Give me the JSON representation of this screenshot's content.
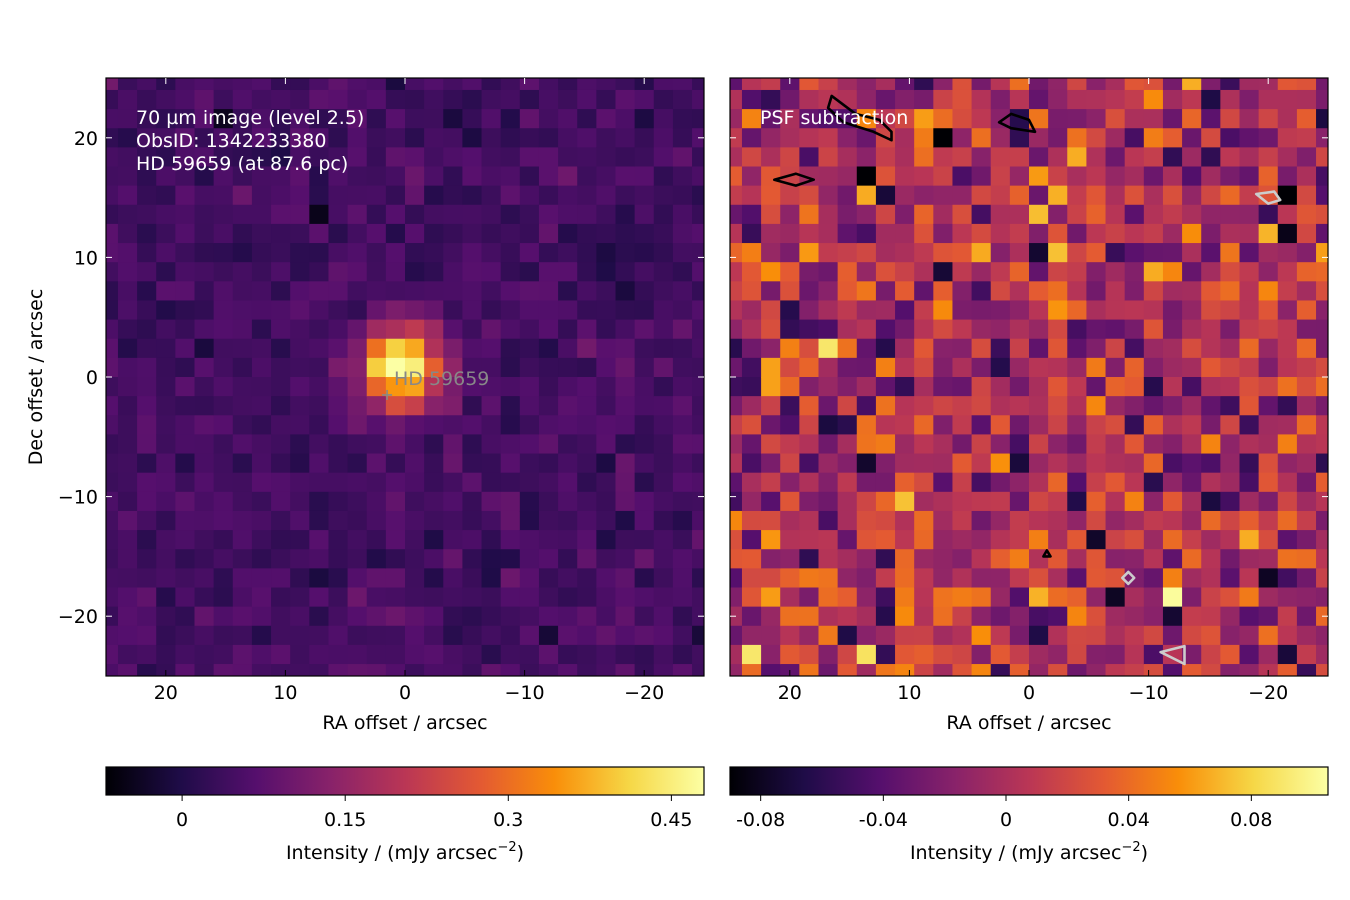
{
  "chart_data": [
    {
      "type": "heatmap",
      "panel": "left",
      "annotations": [
        "70 µm image (level 2.5)",
        "ObsID: 1342233380",
        "HD 59659 (at 87.6 pc)"
      ],
      "star_label": "HD  59659",
      "star_position": [
        1.5,
        -1.5
      ],
      "xlabel": "RA offset / arcsec",
      "ylabel": "Dec offset / arcsec",
      "xlim": [
        25,
        -25
      ],
      "ylim": [
        -25,
        25
      ],
      "xticks": [
        20,
        10,
        0,
        -10,
        -20
      ],
      "xtick_labels": [
        "20",
        "10",
        "0",
        "−10",
        "−20"
      ],
      "yticks": [
        20,
        10,
        0,
        -10,
        -20
      ],
      "ytick_labels": [
        "20",
        "10",
        "0",
        "−10",
        "−20"
      ],
      "pixel_size_arcsec": 1.6,
      "grid_size": 32,
      "peak_intensity": 0.45,
      "noise_rms": 0.022,
      "colormap": "inferno",
      "colorbar": {
        "label": "Intensity / (mJy arcsec",
        "label_exp": "−2",
        "label_end": ")",
        "vmin": -0.07,
        "vmax": 0.48,
        "ticks": [
          0,
          0.15,
          0.3,
          0.45
        ],
        "tick_labels": [
          "0",
          "0.15",
          "0.3",
          "0.45"
        ]
      }
    },
    {
      "type": "heatmap",
      "panel": "right",
      "annotations": [
        "PSF subtraction"
      ],
      "xlabel": "RA offset / arcsec",
      "xlim": [
        25,
        -25
      ],
      "ylim": [
        -25,
        25
      ],
      "xticks": [
        20,
        10,
        0,
        -10,
        -20
      ],
      "xtick_labels": [
        "20",
        "10",
        "0",
        "−10",
        "−20"
      ],
      "pixel_size_arcsec": 1.6,
      "grid_size": 32,
      "noise_rms": 0.03,
      "colormap": "inferno",
      "contours": [
        {
          "color": "#000000",
          "points": [
            [
              16.5,
              23.5
            ],
            [
              14.5,
              22
            ],
            [
              12.5,
              21.5
            ],
            [
              11.5,
              20.5
            ],
            [
              11.5,
              19.8
            ],
            [
              13,
              20.5
            ],
            [
              15.5,
              21.3
            ],
            [
              16.8,
              22.5
            ]
          ]
        },
        {
          "color": "#000000",
          "points": [
            [
              1.5,
              22
            ],
            [
              0,
              21.5
            ],
            [
              -0.5,
              20.5
            ],
            [
              1.5,
              20.8
            ],
            [
              2.5,
              21.3
            ]
          ]
        },
        {
          "color": "#000000",
          "points": [
            [
              21.3,
              16.5
            ],
            [
              19.5,
              17
            ],
            [
              18,
              16.5
            ],
            [
              19.5,
              16
            ]
          ]
        },
        {
          "color": "#000000",
          "points": [
            [
              -1.5,
              -14.5
            ],
            [
              -1.8,
              -15
            ],
            [
              -1.2,
              -15
            ],
            [
              -1.5,
              -14.5
            ]
          ]
        },
        {
          "color": "#cccccc",
          "points": [
            [
              -20.5,
              15.5
            ],
            [
              -21,
              14.8
            ],
            [
              -20,
              14.5
            ],
            [
              -19,
              15.3
            ]
          ]
        },
        {
          "color": "#cccccc",
          "points": [
            [
              -8.3,
              -16.3
            ],
            [
              -8.8,
              -16.8
            ],
            [
              -8.3,
              -17.3
            ],
            [
              -7.8,
              -16.8
            ]
          ]
        },
        {
          "color": "#cccccc",
          "points": [
            [
              -11,
              -23
            ],
            [
              -13,
              -22.5
            ],
            [
              -13,
              -24
            ],
            [
              -11,
              -23
            ]
          ]
        }
      ],
      "colorbar": {
        "label": "Intensity / (mJy arcsec",
        "label_exp": "−2",
        "label_end": ")",
        "vmin": -0.09,
        "vmax": 0.105,
        "ticks": [
          -0.08,
          -0.04,
          0,
          0.04,
          0.08
        ],
        "tick_labels": [
          "-0.08",
          "-0.04",
          "0",
          "0.04",
          "0.08"
        ]
      }
    }
  ]
}
